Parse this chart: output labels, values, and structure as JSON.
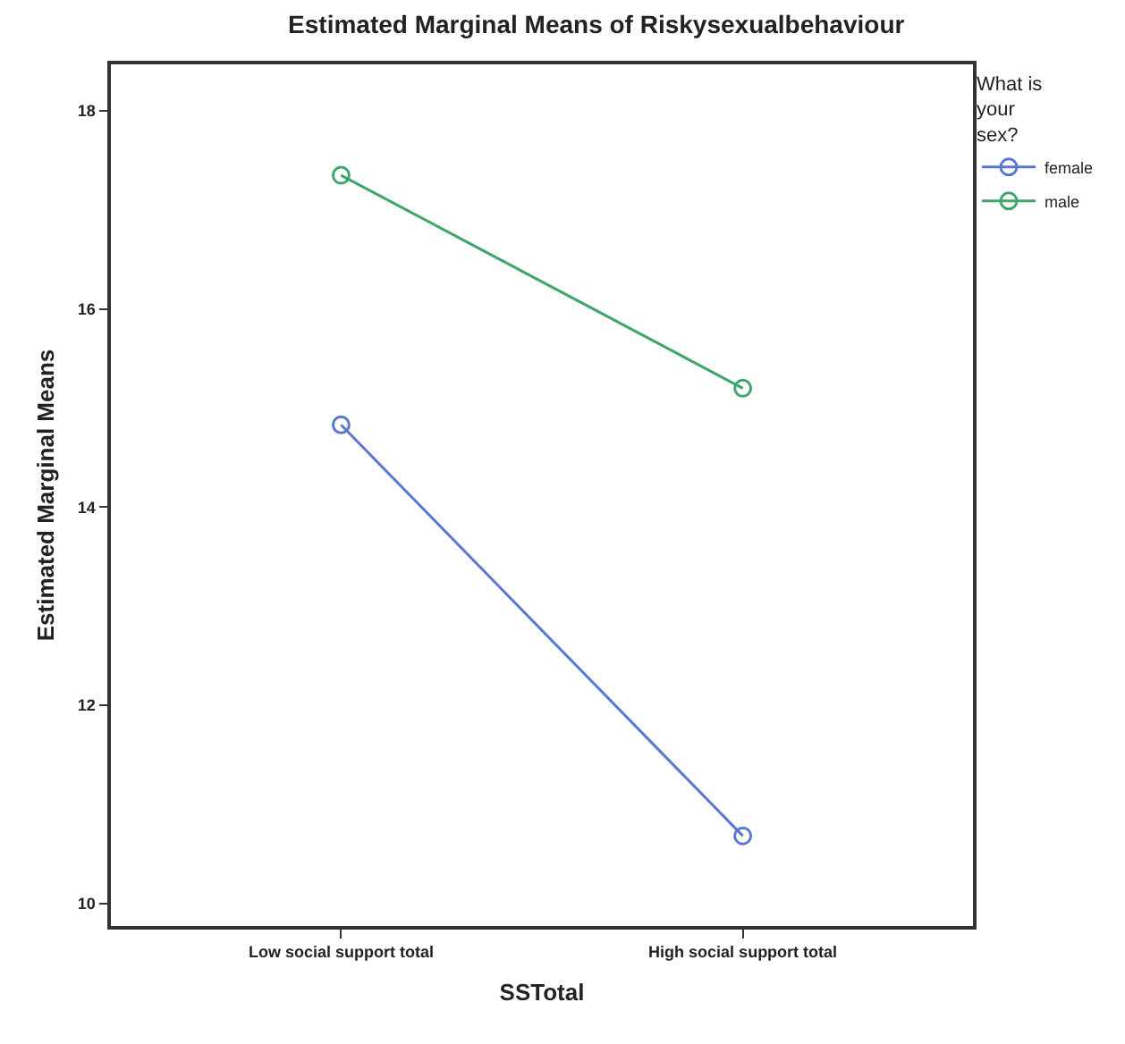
{
  "chart_data": {
    "type": "line",
    "title": "Estimated Marginal Means of Riskysexualbehaviour",
    "xlabel": "SSTotal",
    "ylabel": "Estimated Marginal Means",
    "legend_title": "What is your sex?",
    "categories": [
      "Low social support total",
      "High social support total"
    ],
    "series": [
      {
        "name": "female",
        "color": "#5a78d0",
        "values": [
          14.83,
          10.68
        ]
      },
      {
        "name": "male",
        "color": "#3fa66b",
        "values": [
          17.35,
          15.2
        ]
      }
    ],
    "ylim": [
      9.77,
      18.47
    ],
    "yticks": [
      10,
      12,
      14,
      16,
      18
    ],
    "grid": false,
    "legend": "top right",
    "marker": "circle",
    "line_style": "solid"
  }
}
